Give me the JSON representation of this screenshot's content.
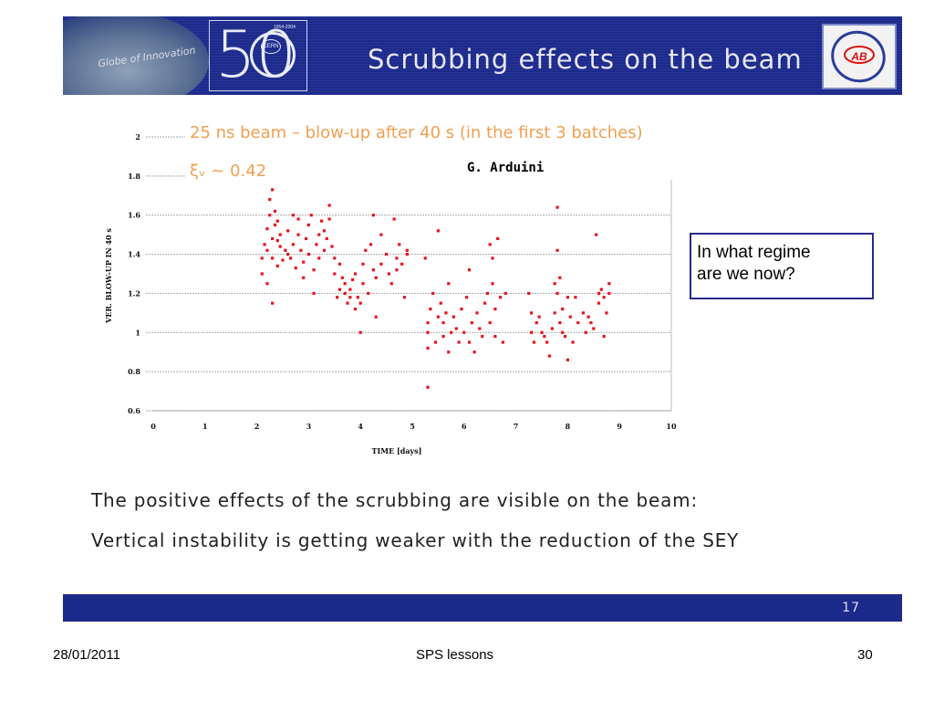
{
  "header": {
    "globe_text": "Globe of Innovation",
    "logo_50": "50",
    "logo_cern": "CERN",
    "logo_years": "1954-2004",
    "title": "Scrubbing effects on the beam",
    "ab_logo": "AB"
  },
  "chart_data": {
    "type": "scatter",
    "annotation_main": "25 ns beam – blow-up after 40 s (in the first 3 batches)",
    "annotation_xi": "ξᵥ ~ 0.42",
    "credit": "G. Arduini",
    "xlabel": "TIME [days]",
    "ylabel": "VER. BLOW-UP IN 40 s",
    "xlim": [
      0,
      10
    ],
    "ylim": [
      0.6,
      2
    ],
    "xticks": [
      "0",
      "1",
      "2",
      "3",
      "4",
      "5",
      "6",
      "7",
      "8",
      "9",
      "10"
    ],
    "yticks": [
      "0.6",
      "0.8",
      "1",
      "1.2",
      "1.4",
      "1.6",
      "1.8",
      "2"
    ],
    "grid": "horizontal",
    "point_color": "#e8141c",
    "points": [
      [
        2.1,
        1.3
      ],
      [
        2.1,
        1.38
      ],
      [
        2.15,
        1.45
      ],
      [
        2.2,
        1.42
      ],
      [
        2.2,
        1.53
      ],
      [
        2.25,
        1.6
      ],
      [
        2.25,
        1.68
      ],
      [
        2.3,
        1.73
      ],
      [
        2.3,
        1.48
      ],
      [
        2.3,
        1.38
      ],
      [
        2.35,
        1.55
      ],
      [
        2.35,
        1.62
      ],
      [
        2.4,
        1.57
      ],
      [
        2.4,
        1.47
      ],
      [
        2.4,
        1.34
      ],
      [
        2.45,
        1.5
      ],
      [
        2.45,
        1.44
      ],
      [
        2.2,
        1.25
      ],
      [
        2.3,
        1.15
      ],
      [
        2.5,
        1.37
      ],
      [
        2.55,
        1.42
      ],
      [
        2.6,
        1.4
      ],
      [
        2.6,
        1.52
      ],
      [
        2.65,
        1.38
      ],
      [
        2.7,
        1.45
      ],
      [
        2.7,
        1.6
      ],
      [
        2.75,
        1.33
      ],
      [
        2.8,
        1.5
      ],
      [
        2.8,
        1.58
      ],
      [
        2.85,
        1.42
      ],
      [
        2.9,
        1.36
      ],
      [
        2.9,
        1.28
      ],
      [
        2.95,
        1.48
      ],
      [
        3.0,
        1.55
      ],
      [
        3.0,
        1.4
      ],
      [
        3.05,
        1.6
      ],
      [
        3.1,
        1.32
      ],
      [
        3.1,
        1.2
      ],
      [
        3.15,
        1.45
      ],
      [
        3.2,
        1.38
      ],
      [
        3.2,
        1.5
      ],
      [
        3.25,
        1.57
      ],
      [
        3.3,
        1.42
      ],
      [
        3.3,
        1.52
      ],
      [
        3.35,
        1.48
      ],
      [
        3.4,
        1.58
      ],
      [
        3.4,
        1.65
      ],
      [
        3.45,
        1.44
      ],
      [
        3.5,
        1.38
      ],
      [
        3.5,
        1.3
      ],
      [
        3.55,
        1.18
      ],
      [
        3.6,
        1.22
      ],
      [
        3.6,
        1.35
      ],
      [
        3.65,
        1.28
      ],
      [
        3.7,
        1.2
      ],
      [
        3.7,
        1.25
      ],
      [
        3.75,
        1.15
      ],
      [
        3.8,
        1.18
      ],
      [
        3.8,
        1.22
      ],
      [
        3.85,
        1.27
      ],
      [
        3.9,
        1.12
      ],
      [
        3.9,
        1.3
      ],
      [
        3.95,
        1.18
      ],
      [
        4.0,
        1.15
      ],
      [
        4.0,
        1.0
      ],
      [
        4.05,
        1.35
      ],
      [
        4.05,
        1.25
      ],
      [
        4.1,
        1.42
      ],
      [
        4.15,
        1.2
      ],
      [
        4.2,
        1.45
      ],
      [
        4.25,
        1.32
      ],
      [
        4.25,
        1.6
      ],
      [
        4.3,
        1.28
      ],
      [
        4.3,
        1.08
      ],
      [
        4.4,
        1.5
      ],
      [
        4.4,
        1.35
      ],
      [
        4.5,
        1.4
      ],
      [
        4.55,
        1.3
      ],
      [
        4.6,
        1.25
      ],
      [
        4.65,
        1.58
      ],
      [
        4.7,
        1.38
      ],
      [
        4.7,
        1.32
      ],
      [
        4.75,
        1.45
      ],
      [
        4.8,
        1.35
      ],
      [
        4.85,
        1.18
      ],
      [
        4.9,
        1.4
      ],
      [
        4.9,
        1.42
      ],
      [
        5.25,
        1.38
      ],
      [
        5.3,
        1.05
      ],
      [
        5.3,
        0.92
      ],
      [
        5.3,
        1.0
      ],
      [
        5.3,
        0.72
      ],
      [
        5.35,
        1.12
      ],
      [
        5.4,
        1.2
      ],
      [
        5.45,
        0.95
      ],
      [
        5.5,
        1.52
      ],
      [
        5.5,
        1.08
      ],
      [
        5.55,
        1.15
      ],
      [
        5.6,
        1.05
      ],
      [
        5.6,
        0.98
      ],
      [
        5.65,
        1.1
      ],
      [
        5.7,
        1.25
      ],
      [
        5.7,
        0.9
      ],
      [
        5.75,
        1.0
      ],
      [
        5.8,
        1.08
      ],
      [
        5.85,
        1.02
      ],
      [
        5.9,
        0.95
      ],
      [
        5.95,
        1.12
      ],
      [
        6.0,
        1.0
      ],
      [
        6.05,
        1.18
      ],
      [
        6.1,
        0.95
      ],
      [
        6.1,
        1.32
      ],
      [
        6.15,
        1.05
      ],
      [
        6.2,
        0.9
      ],
      [
        6.25,
        1.1
      ],
      [
        6.3,
        1.02
      ],
      [
        6.35,
        0.98
      ],
      [
        6.4,
        1.15
      ],
      [
        6.45,
        1.2
      ],
      [
        6.5,
        1.05
      ],
      [
        6.5,
        1.45
      ],
      [
        6.55,
        1.25
      ],
      [
        6.55,
        1.38
      ],
      [
        6.6,
        1.12
      ],
      [
        6.6,
        0.98
      ],
      [
        6.65,
        1.48
      ],
      [
        6.7,
        1.18
      ],
      [
        6.75,
        0.95
      ],
      [
        6.8,
        1.2
      ],
      [
        7.25,
        1.2
      ],
      [
        7.3,
        1.1
      ],
      [
        7.3,
        1.0
      ],
      [
        7.35,
        0.95
      ],
      [
        7.4,
        1.05
      ],
      [
        7.45,
        1.08
      ],
      [
        7.5,
        1.0
      ],
      [
        7.55,
        0.98
      ],
      [
        7.6,
        0.95
      ],
      [
        7.65,
        0.88
      ],
      [
        7.7,
        1.02
      ],
      [
        7.75,
        1.25
      ],
      [
        7.75,
        1.1
      ],
      [
        7.8,
        1.2
      ],
      [
        7.8,
        1.42
      ],
      [
        7.8,
        1.64
      ],
      [
        7.85,
        1.28
      ],
      [
        7.85,
        1.05
      ],
      [
        7.9,
        1.12
      ],
      [
        7.9,
        1.0
      ],
      [
        7.95,
        0.98
      ],
      [
        8.0,
        1.18
      ],
      [
        8.0,
        0.86
      ],
      [
        8.05,
        1.08
      ],
      [
        8.1,
        0.95
      ],
      [
        8.15,
        1.18
      ],
      [
        8.2,
        1.05
      ],
      [
        8.3,
        1.1
      ],
      [
        8.35,
        1.0
      ],
      [
        8.4,
        1.08
      ],
      [
        8.45,
        1.05
      ],
      [
        8.5,
        1.02
      ],
      [
        8.55,
        1.5
      ],
      [
        8.6,
        1.2
      ],
      [
        8.6,
        1.15
      ],
      [
        8.65,
        1.22
      ],
      [
        8.7,
        0.98
      ],
      [
        8.7,
        1.18
      ],
      [
        8.75,
        1.1
      ],
      [
        8.8,
        1.2
      ],
      [
        8.8,
        1.25
      ]
    ]
  },
  "callout": {
    "line1": "In what regime",
    "line2": "are we now?"
  },
  "body": {
    "line1": "The positive effects of the scrubbing are visible on the beam:",
    "line2": "Vertical instability is getting weaker with the reduction of the SEY"
  },
  "footer_bar": {
    "page": "17"
  },
  "footer": {
    "date": "28/01/2011",
    "title": "SPS lessons",
    "page": "30"
  }
}
